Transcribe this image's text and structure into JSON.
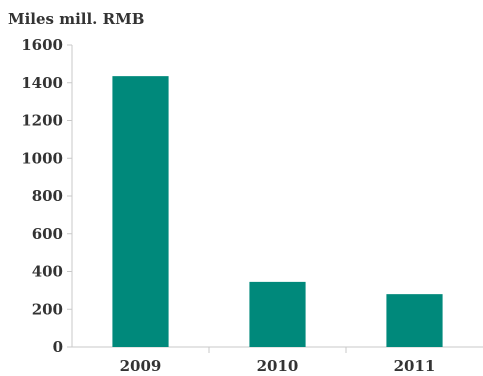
{
  "chart_data": {
    "type": "bar",
    "title": "",
    "ylabel": "Miles mill. RMB",
    "xlabel": "",
    "categories": [
      "2009",
      "2010",
      "2011"
    ],
    "values": [
      1435,
      345,
      280
    ],
    "ylim": [
      0,
      1600
    ],
    "yticks": [
      0,
      200,
      400,
      600,
      800,
      1000,
      1200,
      1400,
      1600
    ],
    "ytick_labels": [
      "0",
      "200",
      "400",
      "600",
      "800",
      "1000",
      "1200",
      "1400",
      "1600"
    ],
    "grid": false,
    "legend": "none",
    "bar_color": "#00897b",
    "axis_color": "#c8c8c8"
  }
}
